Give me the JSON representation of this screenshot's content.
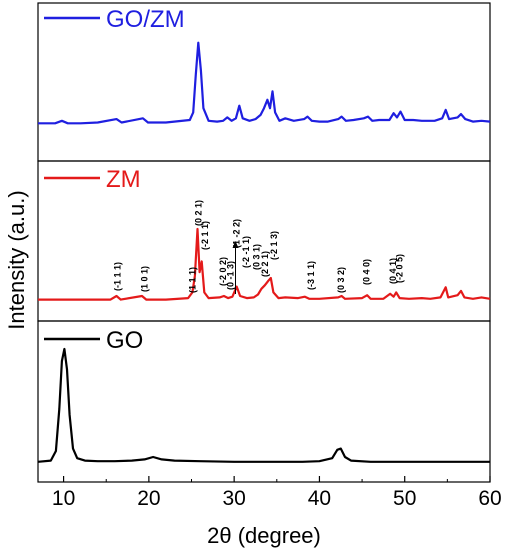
{
  "chart_data": {
    "type": "line",
    "xlabel": "2θ (degree)",
    "ylabel": "Intensity (a.u.)",
    "xlim": [
      7,
      60
    ],
    "xticks": [
      10,
      20,
      30,
      40,
      50,
      60
    ],
    "xtick_labels": [
      "10",
      "20",
      "30",
      "40",
      "50",
      "60"
    ],
    "legend_placement": "top-left of each panel",
    "panels": [
      {
        "name": "GO/ZM",
        "color": "#1f1fe0",
        "points": [
          [
            7,
            0.02
          ],
          [
            9,
            0.02
          ],
          [
            9.8,
            0.05
          ],
          [
            10.5,
            0.02
          ],
          [
            12,
            0.02
          ],
          [
            14,
            0.03
          ],
          [
            16.2,
            0.07
          ],
          [
            16.8,
            0.03
          ],
          [
            19.3,
            0.08
          ],
          [
            19.9,
            0.03
          ],
          [
            22,
            0.03
          ],
          [
            24.8,
            0.06
          ],
          [
            25.2,
            0.15
          ],
          [
            25.5,
            0.6
          ],
          [
            25.8,
            0.98
          ],
          [
            26.1,
            0.65
          ],
          [
            26.4,
            0.2
          ],
          [
            27,
            0.05
          ],
          [
            28,
            0.04
          ],
          [
            28.7,
            0.05
          ],
          [
            29.2,
            0.09
          ],
          [
            29.7,
            0.05
          ],
          [
            30.2,
            0.08
          ],
          [
            30.6,
            0.23
          ],
          [
            31,
            0.08
          ],
          [
            31.8,
            0.05
          ],
          [
            32.5,
            0.07
          ],
          [
            33.1,
            0.12
          ],
          [
            33.5,
            0.2
          ],
          [
            33.9,
            0.3
          ],
          [
            34.2,
            0.2
          ],
          [
            34.5,
            0.4
          ],
          [
            34.8,
            0.15
          ],
          [
            35.3,
            0.05
          ],
          [
            36,
            0.08
          ],
          [
            37,
            0.05
          ],
          [
            38.2,
            0.07
          ],
          [
            38.6,
            0.1
          ],
          [
            39.1,
            0.05
          ],
          [
            40,
            0.04
          ],
          [
            41,
            0.04
          ],
          [
            42.2,
            0.07
          ],
          [
            42.6,
            0.1
          ],
          [
            43.1,
            0.05
          ],
          [
            44,
            0.06
          ],
          [
            45.2,
            0.08
          ],
          [
            45.7,
            0.1
          ],
          [
            46.2,
            0.05
          ],
          [
            47,
            0.06
          ],
          [
            48.2,
            0.06
          ],
          [
            48.7,
            0.14
          ],
          [
            49.1,
            0.09
          ],
          [
            49.5,
            0.16
          ],
          [
            50,
            0.06
          ],
          [
            51,
            0.06
          ],
          [
            52,
            0.05
          ],
          [
            53.5,
            0.05
          ],
          [
            54.4,
            0.08
          ],
          [
            54.8,
            0.18
          ],
          [
            55.2,
            0.07
          ],
          [
            56.2,
            0.09
          ],
          [
            56.6,
            0.13
          ],
          [
            57.1,
            0.07
          ],
          [
            58,
            0.04
          ],
          [
            59,
            0.05
          ],
          [
            60,
            0.04
          ]
        ]
      },
      {
        "name": "ZM",
        "color": "#e41a1a",
        "points": [
          [
            7,
            0.02
          ],
          [
            12,
            0.02
          ],
          [
            15.5,
            0.02
          ],
          [
            16.2,
            0.07
          ],
          [
            16.7,
            0.02
          ],
          [
            19.2,
            0.07
          ],
          [
            19.7,
            0.02
          ],
          [
            22,
            0.02
          ],
          [
            24.6,
            0.04
          ],
          [
            25.1,
            0.12
          ],
          [
            25.4,
            0.35
          ],
          [
            25.7,
            1.0
          ],
          [
            25.95,
            0.4
          ],
          [
            26.2,
            0.55
          ],
          [
            26.5,
            0.12
          ],
          [
            27,
            0.04
          ],
          [
            28.3,
            0.05
          ],
          [
            28.8,
            0.07
          ],
          [
            29.3,
            0.04
          ],
          [
            29.8,
            0.06
          ],
          [
            30.3,
            0.2
          ],
          [
            30.7,
            0.07
          ],
          [
            31.5,
            0.04
          ],
          [
            32.3,
            0.05
          ],
          [
            32.8,
            0.09
          ],
          [
            33.2,
            0.17
          ],
          [
            33.6,
            0.22
          ],
          [
            34,
            0.28
          ],
          [
            34.3,
            0.32
          ],
          [
            34.6,
            0.12
          ],
          [
            35.2,
            0.04
          ],
          [
            36,
            0.05
          ],
          [
            37.5,
            0.04
          ],
          [
            38.3,
            0.06
          ],
          [
            38.8,
            0.03
          ],
          [
            40,
            0.03
          ],
          [
            42.2,
            0.05
          ],
          [
            42.6,
            0.07
          ],
          [
            43,
            0.03
          ],
          [
            45,
            0.04
          ],
          [
            45.6,
            0.08
          ],
          [
            46,
            0.03
          ],
          [
            47.5,
            0.03
          ],
          [
            48.3,
            0.1
          ],
          [
            48.7,
            0.06
          ],
          [
            49,
            0.12
          ],
          [
            49.4,
            0.04
          ],
          [
            50.5,
            0.03
          ],
          [
            52,
            0.04
          ],
          [
            53,
            0.03
          ],
          [
            54.2,
            0.05
          ],
          [
            54.8,
            0.19
          ],
          [
            55.1,
            0.05
          ],
          [
            56.2,
            0.08
          ],
          [
            56.6,
            0.14
          ],
          [
            57,
            0.05
          ],
          [
            58,
            0.03
          ],
          [
            59,
            0.05
          ],
          [
            60,
            0.03
          ]
        ],
        "annotations": [
          {
            "label": "(-1 1 1)",
            "x": 16.3
          },
          {
            "label": "(1 0 1)",
            "x": 19.5
          },
          {
            "label": "(1 1 1)",
            "x": 25.1
          },
          {
            "label": "(0 2 1)",
            "x": 25.8
          },
          {
            "label": "(-2 1 1)",
            "x": 26.6
          },
          {
            "label": "(-2 0 2)",
            "x": 28.7
          },
          {
            "label": "(0 -1 3)",
            "x": 29.6
          },
          {
            "label": "(1 -2 2)",
            "x": 30.3
          },
          {
            "label": "(-2 -1 1)",
            "x": 31.4
          },
          {
            "label": "(0 3 1)",
            "x": 32.6
          },
          {
            "label": "(2 2 1)",
            "x": 33.6
          },
          {
            "label": "(-2 1 3)",
            "x": 34.7
          },
          {
            "label": "(-3 1 1)",
            "x": 39.0
          },
          {
            "label": "(0 3 2)",
            "x": 42.5
          },
          {
            "label": "(0 4 0)",
            "x": 45.5
          },
          {
            "label": "(0 4 1)",
            "x": 48.6
          },
          {
            "label": "(-2 0 5)",
            "x": 49.4
          }
        ]
      },
      {
        "name": "GO",
        "color": "#000000",
        "points": [
          [
            7,
            0.01
          ],
          [
            8.5,
            0.02
          ],
          [
            9.1,
            0.1
          ],
          [
            9.5,
            0.45
          ],
          [
            9.8,
            0.85
          ],
          [
            10.1,
            0.95
          ],
          [
            10.4,
            0.78
          ],
          [
            10.7,
            0.4
          ],
          [
            11.1,
            0.12
          ],
          [
            11.6,
            0.04
          ],
          [
            12.5,
            0.02
          ],
          [
            14,
            0.015
          ],
          [
            16,
            0.015
          ],
          [
            18,
            0.02
          ],
          [
            19.5,
            0.03
          ],
          [
            20.5,
            0.05
          ],
          [
            21.5,
            0.03
          ],
          [
            23,
            0.02
          ],
          [
            26,
            0.015
          ],
          [
            30,
            0.01
          ],
          [
            34,
            0.01
          ],
          [
            38,
            0.01
          ],
          [
            40,
            0.015
          ],
          [
            41.5,
            0.04
          ],
          [
            42.1,
            0.11
          ],
          [
            42.5,
            0.12
          ],
          [
            43,
            0.05
          ],
          [
            43.7,
            0.02
          ],
          [
            46,
            0.01
          ],
          [
            50,
            0.01
          ],
          [
            55,
            0.01
          ],
          [
            60,
            0.01
          ]
        ]
      }
    ]
  }
}
